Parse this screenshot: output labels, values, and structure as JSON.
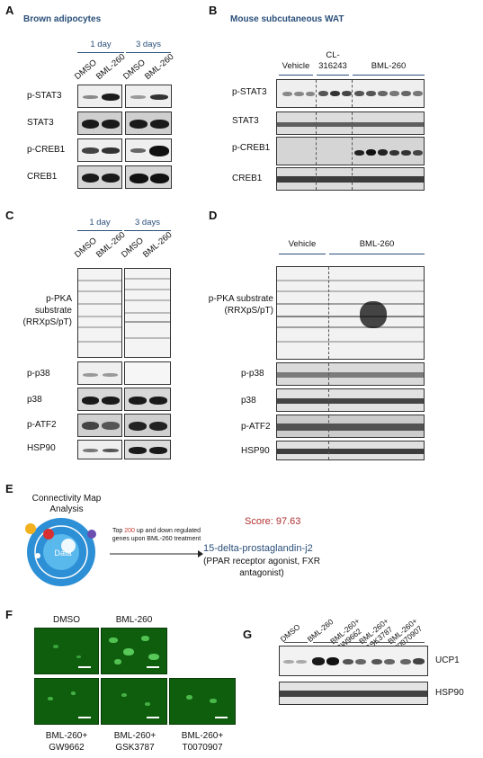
{
  "panels": {
    "A": {
      "letter": "A",
      "title": "Brown adipocytes",
      "groups": [
        "1 day",
        "3 days"
      ],
      "lanes": [
        "DMSO",
        "BML-260",
        "DMSO",
        "BML-260"
      ],
      "rows": [
        "p-STAT3",
        "STAT3",
        "p-CREB1",
        "CREB1"
      ]
    },
    "B": {
      "letter": "B",
      "title": "Mouse subcutaneous WAT",
      "groups": [
        "Vehicle",
        "CL-316243",
        "BML-260"
      ],
      "rows": [
        "p-STAT3",
        "STAT3",
        "p-CREB1",
        "CREB1"
      ]
    },
    "C": {
      "letter": "C",
      "groups": [
        "1 day",
        "3 days"
      ],
      "lanes": [
        "DMSO",
        "BML-260",
        "DMSO",
        "BML-260"
      ],
      "rows": [
        "p-PKA substrate (RRXpS/pT)",
        "p-p38",
        "p38",
        "p-ATF2",
        "HSP90"
      ]
    },
    "D": {
      "letter": "D",
      "groups": [
        "Vehicle",
        "BML-260"
      ],
      "rows": [
        "p-PKA substrate (RRXpS/pT)",
        "p-p38",
        "p38",
        "p-ATF2",
        "HSP90"
      ]
    },
    "E": {
      "letter": "E",
      "cmap_title": "Connectivity Map Analysis",
      "circle_label": "Data",
      "arrow_text_pre": "Top ",
      "arrow_text_num": "200",
      "arrow_text_post": " up and down regulated genes upon BML-260 treatment",
      "score": "Score: 97.63",
      "compound": "15-delta-prostaglandin-j2",
      "compound_note": "(PPAR receptor agonist, FXR antagonist)"
    },
    "F": {
      "letter": "F",
      "images": [
        "DMSO",
        "BML-260",
        "BML-260+ GW9662",
        "BML-260+ GSK3787",
        "BML-260+ T0070907"
      ]
    },
    "G": {
      "letter": "G",
      "lanes": [
        "DMSO",
        "BML-260",
        "BML-260+ GW9662",
        "BML-260+ GSK3787",
        "BML-260+ T0070907"
      ],
      "rows": [
        "UCP1",
        "HSP90"
      ]
    }
  },
  "colors": {
    "blue": "#2a4f7a",
    "score_red": "#b03030",
    "highlight_red": "#c0392b",
    "micro_green": "#0e5e0e"
  }
}
